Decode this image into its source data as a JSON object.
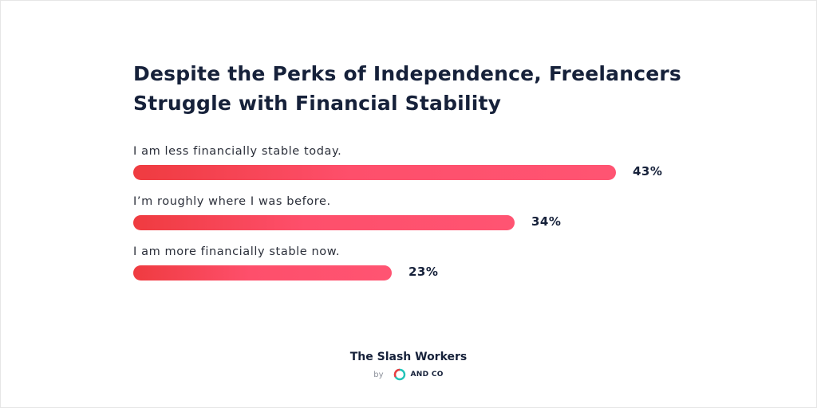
{
  "chart_data": {
    "type": "bar",
    "orientation": "horizontal",
    "title": "Despite the Perks of Independence, Freelancers Struggle with Financial Stability",
    "categories": [
      "I am less financially stable today.",
      "I’m roughly where I was before.",
      "I am more financially stable now."
    ],
    "values": [
      43,
      34,
      23
    ],
    "value_labels": [
      "43%",
      "34%",
      "23%"
    ],
    "unit": "%",
    "xlim": [
      0,
      43
    ]
  },
  "colors": {
    "bar_start": "#ef3b40",
    "bar_end": "#ff5472",
    "text_dark": "#16213a",
    "logo_teal": "#22c3b8",
    "logo_red": "#ef3b40"
  },
  "footer": {
    "title": "The Slash Workers",
    "by": "by",
    "brand": "AND CO",
    "logo_icon": "and-co-logo-icon"
  }
}
